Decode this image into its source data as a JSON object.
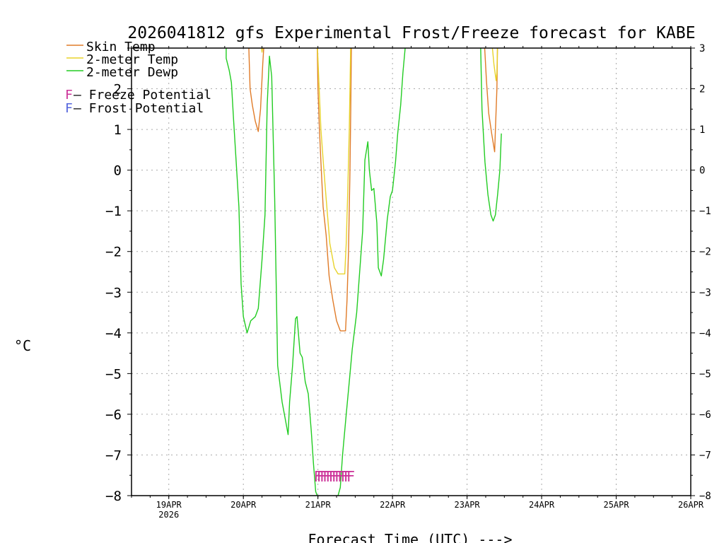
{
  "chart_data": {
    "type": "line",
    "title": "2026041812 gfs Experimental Frost/Freeze forecast for KABE",
    "xlabel": "Forecast Time (UTC) --->",
    "ylabel": "°C",
    "ylim": [
      -8,
      3
    ],
    "xlim": [
      0,
      7.5
    ],
    "yticks": [
      3,
      2,
      1,
      0,
      -1,
      -2,
      -3,
      -4,
      -5,
      -6,
      -7,
      -8
    ],
    "yticks_left": [
      "",
      "2",
      "1",
      "0",
      "−1",
      "−2",
      "−3",
      "−4",
      "−5",
      "−6",
      "−7",
      "−8"
    ],
    "yticks_right": [
      "3",
      "2",
      "1",
      "0",
      "−1",
      "−2",
      "−3",
      "−4",
      "−5",
      "−6",
      "−7",
      "−8"
    ],
    "xticks": [
      {
        "x": 0.5,
        "label": "19APR",
        "sub": "2026"
      },
      {
        "x": 1.5,
        "label": "20APR",
        "sub": ""
      },
      {
        "x": 2.5,
        "label": "21APR",
        "sub": ""
      },
      {
        "x": 3.5,
        "label": "22APR",
        "sub": ""
      },
      {
        "x": 4.5,
        "label": "23APR",
        "sub": ""
      },
      {
        "x": 5.5,
        "label": "24APR",
        "sub": ""
      },
      {
        "x": 6.5,
        "label": "25APR",
        "sub": ""
      },
      {
        "x": 7.5,
        "label": "26APR",
        "sub": ""
      }
    ],
    "grid": true,
    "legend_location": "top-left",
    "series": [
      {
        "name": "Skin Temp",
        "color": "#e07b28",
        "segments": [
          [
            [
              1.57,
              3.2
            ],
            [
              1.59,
              2.0
            ],
            [
              1.62,
              1.6
            ],
            [
              1.66,
              1.2
            ],
            [
              1.7,
              0.95
            ],
            [
              1.73,
              1.5
            ],
            [
              1.76,
              2.6
            ],
            [
              1.78,
              3.2
            ]
          ],
          [
            [
              2.49,
              3.2
            ],
            [
              2.5,
              2.0
            ],
            [
              2.52,
              1.0
            ],
            [
              2.54,
              0.2
            ],
            [
              2.57,
              -0.9
            ],
            [
              2.61,
              -1.6
            ],
            [
              2.65,
              -2.6
            ],
            [
              2.7,
              -3.2
            ],
            [
              2.75,
              -3.7
            ],
            [
              2.8,
              -3.95
            ],
            [
              2.87,
              -3.95
            ],
            [
              2.89,
              -3.2
            ],
            [
              2.91,
              -2.0
            ],
            [
              2.93,
              0.0
            ],
            [
              2.94,
              1.5
            ],
            [
              2.95,
              3.2
            ]
          ],
          [
            [
              4.73,
              3.2
            ],
            [
              4.76,
              2.2
            ],
            [
              4.79,
              1.4
            ],
            [
              4.83,
              0.9
            ],
            [
              4.87,
              0.45
            ],
            [
              4.88,
              1.0
            ],
            [
              4.9,
              2.0
            ],
            [
              4.91,
              3.2
            ]
          ]
        ]
      },
      {
        "name": "2-meter Temp",
        "color": "#e8d32a",
        "segments": [
          [
            [
              1.73,
              3.2
            ],
            [
              1.75,
              2.9
            ],
            [
              1.77,
              3.2
            ]
          ],
          [
            [
              2.49,
              3.2
            ],
            [
              2.51,
              2.3
            ],
            [
              2.54,
              1.0
            ],
            [
              2.58,
              0.0
            ],
            [
              2.61,
              -0.7
            ],
            [
              2.66,
              -1.8
            ],
            [
              2.72,
              -2.4
            ],
            [
              2.77,
              -2.55
            ],
            [
              2.86,
              -2.55
            ],
            [
              2.88,
              -1.8
            ],
            [
              2.9,
              -0.5
            ],
            [
              2.92,
              1.0
            ],
            [
              2.94,
              3.2
            ]
          ],
          [
            [
              4.83,
              3.2
            ],
            [
              4.86,
              2.6
            ],
            [
              4.89,
              2.2
            ],
            [
              4.9,
              2.4
            ],
            [
              4.91,
              3.2
            ]
          ]
        ]
      },
      {
        "name": "2-meter Dewp",
        "color": "#22cc22",
        "segments": [
          [
            [
              1.27,
              3.2
            ],
            [
              1.27,
              2.75
            ],
            [
              1.31,
              2.45
            ],
            [
              1.34,
              2.15
            ],
            [
              1.37,
              1.2
            ],
            [
              1.4,
              0.3
            ],
            [
              1.44,
              -0.9
            ],
            [
              1.47,
              -2.8
            ],
            [
              1.5,
              -3.6
            ],
            [
              1.55,
              -4.0
            ],
            [
              1.6,
              -3.7
            ],
            [
              1.66,
              -3.6
            ],
            [
              1.7,
              -3.4
            ],
            [
              1.75,
              -2.2
            ],
            [
              1.79,
              -1.1
            ],
            [
              1.82,
              1.6
            ],
            [
              1.85,
              2.8
            ],
            [
              1.88,
              2.3
            ],
            [
              1.92,
              -0.7
            ],
            [
              1.96,
              -4.8
            ],
            [
              2.02,
              -5.7
            ],
            [
              2.06,
              -6.1
            ],
            [
              2.1,
              -6.5
            ],
            [
              2.12,
              -5.7
            ],
            [
              2.16,
              -4.8
            ],
            [
              2.2,
              -3.65
            ],
            [
              2.22,
              -3.6
            ],
            [
              2.26,
              -4.5
            ],
            [
              2.29,
              -4.6
            ],
            [
              2.33,
              -5.2
            ],
            [
              2.37,
              -5.5
            ],
            [
              2.41,
              -6.4
            ],
            [
              2.44,
              -7.2
            ],
            [
              2.47,
              -7.9
            ],
            [
              2.49,
              -8.0
            ]
          ],
          [
            [
              2.77,
              -8.0
            ],
            [
              2.8,
              -7.8
            ],
            [
              2.83,
              -7.0
            ],
            [
              2.88,
              -6.0
            ],
            [
              2.92,
              -5.2
            ],
            [
              2.96,
              -4.4
            ],
            [
              3.02,
              -3.5
            ],
            [
              3.06,
              -2.5
            ],
            [
              3.1,
              -1.5
            ],
            [
              3.13,
              0.25
            ],
            [
              3.17,
              0.7
            ],
            [
              3.19,
              0.0
            ],
            [
              3.22,
              -0.5
            ],
            [
              3.25,
              -0.45
            ],
            [
              3.29,
              -1.3
            ],
            [
              3.31,
              -2.4
            ],
            [
              3.35,
              -2.6
            ],
            [
              3.38,
              -2.2
            ],
            [
              3.43,
              -1.2
            ],
            [
              3.47,
              -0.65
            ],
            [
              3.5,
              -0.5
            ],
            [
              3.54,
              0.2
            ],
            [
              3.57,
              0.9
            ],
            [
              3.61,
              1.6
            ],
            [
              3.64,
              2.4
            ],
            [
              3.68,
              3.2
            ]
          ],
          [
            [
              4.68,
              3.2
            ],
            [
              4.7,
              1.5
            ],
            [
              4.74,
              0.2
            ],
            [
              4.78,
              -0.6
            ],
            [
              4.82,
              -1.1
            ],
            [
              4.85,
              -1.25
            ],
            [
              4.88,
              -1.1
            ],
            [
              4.91,
              -0.6
            ],
            [
              4.94,
              0.0
            ],
            [
              4.96,
              0.9
            ]
          ]
        ]
      }
    ],
    "freeze_potential": {
      "marker": "F",
      "color": "#cc3399",
      "x": [
        2.5,
        2.54,
        2.58,
        2.62,
        2.66,
        2.7,
        2.74,
        2.78,
        2.82,
        2.86,
        2.9,
        2.94
      ],
      "y": -7.5
    },
    "legend": [
      {
        "label": "Skin Temp",
        "color": "#e07b28",
        "kind": "line"
      },
      {
        "label": "2-meter Temp",
        "color": "#e8d32a",
        "kind": "line"
      },
      {
        "label": "2-meter Dewp",
        "color": "#22cc22",
        "kind": "line"
      },
      {
        "marker": "F",
        "label": " – Freeze Potential",
        "color": "#cc3399",
        "kind": "marker"
      },
      {
        "marker": "F",
        "label": " – Frost Potential",
        "color": "#5566dd",
        "kind": "marker"
      }
    ]
  }
}
